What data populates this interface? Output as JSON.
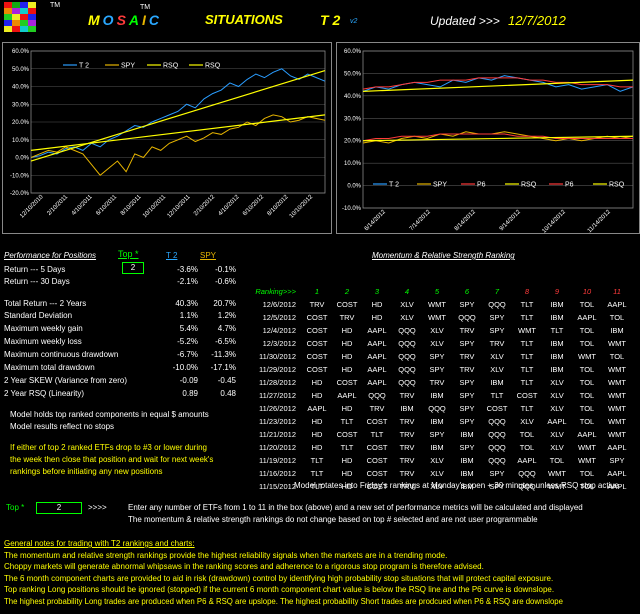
{
  "header": {
    "tm1": "TM",
    "tm2": "TM",
    "mosaic": "MOSAIC",
    "situations": "SITUATIONS",
    "t2": "T 2",
    "version": "v2",
    "updated_label": "Updated >>>",
    "updated_date": "12/7/2012"
  },
  "colors": {
    "t2": "#2a9dff",
    "spy": "#e6b400",
    "rsq": "#ffff00",
    "p6": "#ff3b3b",
    "green": "#00ff00"
  },
  "chart_data": [
    {
      "type": "line",
      "title": "",
      "yticks": [
        "60.0%",
        "50.0%",
        "40.0%",
        "30.0%",
        "20.0%",
        "10.0%",
        "0.0%",
        "-10.0%",
        "-20.0%"
      ],
      "ylim": [
        -20,
        60
      ],
      "xticks": [
        "12/10/2010",
        "2/10/2011",
        "4/10/2011",
        "6/10/2011",
        "8/10/2011",
        "10/10/2011",
        "12/10/2011",
        "2/10/2012",
        "4/10/2012",
        "6/10/2012",
        "8/10/2012",
        "10/10/2012"
      ],
      "legend": [
        "T 2",
        "SPY",
        "RSQ",
        "RSQ"
      ],
      "series": [
        {
          "name": "T 2",
          "values": [
            0,
            1,
            3,
            2,
            5,
            6,
            4,
            8,
            6,
            10,
            12,
            15,
            18,
            17,
            20,
            22,
            24,
            26,
            30,
            28,
            33,
            36,
            38,
            42,
            40,
            44,
            47,
            45,
            48,
            50,
            46,
            44,
            47,
            45,
            43
          ]
        },
        {
          "name": "SPY",
          "values": [
            0,
            2,
            4,
            3,
            6,
            4,
            2,
            -4,
            -10,
            -6,
            -2,
            -8,
            2,
            0,
            6,
            4,
            8,
            10,
            12,
            9,
            11,
            14,
            13,
            16,
            17,
            20,
            18,
            22,
            24,
            23,
            20,
            21,
            23,
            22,
            21
          ]
        },
        {
          "name": "RSQ",
          "values": [
            -2,
            49
          ]
        },
        {
          "name": "RSQ",
          "values": [
            4,
            24
          ]
        }
      ]
    },
    {
      "type": "line",
      "title": "",
      "yticks": [
        "60.0%",
        "50.0%",
        "40.0%",
        "30.0%",
        "20.0%",
        "10.0%",
        "0.0%",
        "-10.0%"
      ],
      "ylim": [
        -10,
        60
      ],
      "xticks": [
        "6/14/2012",
        "7/14/2012",
        "8/14/2012",
        "9/14/2012",
        "10/14/2012",
        "11/14/2012"
      ],
      "legend": [
        "T 2",
        "SPY",
        "P6",
        "RSQ",
        "P6",
        "RSQ"
      ],
      "series": [
        {
          "name": "T 2",
          "values": [
            42,
            44,
            43,
            45,
            46,
            45,
            44,
            47,
            46,
            48,
            47,
            49,
            48,
            47,
            46,
            44,
            45,
            43,
            44,
            45,
            42,
            44
          ]
        },
        {
          "name": "SPY",
          "values": [
            19,
            20,
            19,
            21,
            22,
            21,
            23,
            22,
            24,
            23,
            23,
            24,
            23,
            22,
            21,
            20,
            21,
            20,
            21,
            22,
            21,
            22
          ]
        },
        {
          "name": "P6",
          "values": [
            43,
            44,
            44,
            45,
            46,
            46,
            47,
            47,
            47,
            48,
            48,
            48,
            48,
            47,
            47,
            46,
            46,
            45,
            45,
            45,
            44,
            44
          ]
        },
        {
          "name": "RSQ",
          "values": [
            42,
            47
          ]
        },
        {
          "name": "P6",
          "values": [
            20,
            21,
            21,
            22,
            22,
            22,
            23,
            23,
            23,
            23,
            23,
            23,
            22,
            22,
            22,
            21,
            21,
            21,
            21,
            21,
            21,
            21
          ]
        },
        {
          "name": "RSQ",
          "values": [
            20,
            22
          ]
        }
      ]
    }
  ],
  "performance": {
    "heading": "Performance for Positions",
    "top_label": "Top *",
    "col1": "T 2",
    "col2": "SPY",
    "top_value": "2",
    "rows": [
      {
        "label": "Return --- 5 Days",
        "v1": "-3.6%",
        "v2": "-0.1%"
      },
      {
        "label": "Return --- 30 Days",
        "v1": "-2.1%",
        "v2": "-0.6%"
      },
      {
        "label": "Total Return --- 2 Years",
        "v1": "40.3%",
        "v2": "20.7%"
      },
      {
        "label": "Standard Deviation",
        "v1": "1.1%",
        "v2": "1.2%"
      },
      {
        "label": "Maximum weekly gain",
        "v1": "5.4%",
        "v2": "4.7%"
      },
      {
        "label": "Maximum weekly loss",
        "v1": "-5.2%",
        "v2": "-6.5%"
      },
      {
        "label": "Maximum continuous drawdown",
        "v1": "-6.7%",
        "v2": "-11.3%"
      },
      {
        "label": "Maximum total drawdown",
        "v1": "-10.0%",
        "v2": "-17.1%"
      },
      {
        "label": "2 Year SKEW  (Variance from zero)",
        "v1": "-0.09",
        "v2": "-0.45"
      },
      {
        "label": "2 Year RSQ  (Linearity)",
        "v1": "0.89",
        "v2": "0.48"
      }
    ],
    "model_note1": "Model holds top ranked  components in equal  $ amounts",
    "model_note2": "Model results reflect no stops",
    "stop_note1": "If either of top 2 ranked ETFs drop to #3 or lower during",
    "stop_note2": "the week then close that position and wait for next week's",
    "stop_note3": "rankings before initiating any new positions"
  },
  "ranking": {
    "heading": "Momentum & Relative Strength Ranking",
    "label": "Ranking>>>",
    "cols": [
      "1",
      "2",
      "3",
      "4",
      "5",
      "6",
      "7",
      "8",
      "9",
      "10",
      "11"
    ],
    "rows": [
      {
        "date": "12/6/2012",
        "r": [
          "TRV",
          "COST",
          "HD",
          "XLV",
          "WMT",
          "SPY",
          "QQQ",
          "TLT",
          "IBM",
          "TOL",
          "AAPL"
        ]
      },
      {
        "date": "12/5/2012",
        "r": [
          "COST",
          "TRV",
          "HD",
          "XLV",
          "WMT",
          "QQQ",
          "SPY",
          "TLT",
          "IBM",
          "AAPL",
          "TOL"
        ]
      },
      {
        "date": "12/4/2012",
        "r": [
          "COST",
          "HD",
          "AAPL",
          "QQQ",
          "XLV",
          "TRV",
          "SPY",
          "WMT",
          "TLT",
          "TOL",
          "IBM"
        ]
      },
      {
        "date": "12/3/2012",
        "r": [
          "COST",
          "HD",
          "AAPL",
          "QQQ",
          "XLV",
          "SPY",
          "TRV",
          "TLT",
          "IBM",
          "TOL",
          "WMT"
        ]
      },
      {
        "date": "11/30/2012",
        "r": [
          "COST",
          "HD",
          "AAPL",
          "QQQ",
          "SPY",
          "TRV",
          "XLV",
          "TLT",
          "IBM",
          "WMT",
          "TOL"
        ]
      },
      {
        "date": "11/29/2012",
        "r": [
          "COST",
          "HD",
          "AAPL",
          "QQQ",
          "SPY",
          "TRV",
          "XLV",
          "TLT",
          "IBM",
          "TOL",
          "WMT"
        ]
      },
      {
        "date": "11/28/2012",
        "r": [
          "HD",
          "COST",
          "AAPL",
          "QQQ",
          "TRV",
          "SPY",
          "IBM",
          "TLT",
          "XLV",
          "TOL",
          "WMT"
        ]
      },
      {
        "date": "11/27/2012",
        "r": [
          "HD",
          "AAPL",
          "QQQ",
          "TRV",
          "IBM",
          "SPY",
          "TLT",
          "COST",
          "XLV",
          "TOL",
          "WMT"
        ]
      },
      {
        "date": "11/26/2012",
        "r": [
          "AAPL",
          "HD",
          "TRV",
          "IBM",
          "QQQ",
          "SPY",
          "COST",
          "TLT",
          "XLV",
          "TOL",
          "WMT"
        ]
      },
      {
        "date": "11/23/2012",
        "r": [
          "HD",
          "TLT",
          "COST",
          "TRV",
          "IBM",
          "SPY",
          "QQQ",
          "XLV",
          "AAPL",
          "TOL",
          "WMT"
        ]
      },
      {
        "date": "11/21/2012",
        "r": [
          "HD",
          "COST",
          "TLT",
          "TRV",
          "SPY",
          "IBM",
          "QQQ",
          "TOL",
          "XLV",
          "AAPL",
          "WMT"
        ]
      },
      {
        "date": "11/20/2012",
        "r": [
          "HD",
          "TLT",
          "COST",
          "TRV",
          "IBM",
          "SPY",
          "QQQ",
          "TOL",
          "XLV",
          "WMT",
          "AAPL"
        ]
      },
      {
        "date": "11/19/2012",
        "r": [
          "TLT",
          "HD",
          "COST",
          "TRV",
          "XLV",
          "IBM",
          "QQQ",
          "AAPL",
          "TOL",
          "WMT",
          "SPY"
        ]
      },
      {
        "date": "11/16/2012",
        "r": [
          "TLT",
          "HD",
          "COST",
          "TRV",
          "XLV",
          "IBM",
          "SPY",
          "QQQ",
          "WMT",
          "TOL",
          "AAPL"
        ]
      },
      {
        "date": "11/15/2012",
        "r": [
          "TLT",
          "HD",
          "COST",
          "TRV",
          "XLV",
          "IBM",
          "SPY",
          "QQQ",
          "WMT",
          "TOL",
          "AAPL"
        ]
      }
    ],
    "rotate_note": "Model rotates into Friday's rankings at Monday's open + 30 minutes unless RSQ stop active."
  },
  "top_input": {
    "label": "Top *",
    "value": "2",
    "arrows": ">>>>",
    "line1": "Enter any number of ETFs from 1 to 11 in the box (above) and a new set of performance metrics will be calculated and displayed",
    "line2": "The momentum & relative strength rankings do not change based on top # selected and are not user programmable"
  },
  "notes": {
    "heading": "General notes for trading with T2 rankings and charts:",
    "lines": [
      "The momentum and relative strength rankings provide the highest reliability signals when the markets are in a trending mode.",
      "Choppy markets will generate abnormal whipsaws in the ranking scores and adherence to a rigorous stop program is therefore advised.",
      "The 6 month component charts are provided to aid in risk (drawdown) control by identifying high probability stop situations that will protect capital exposure.",
      "Top ranking Long positions should be ignored (stopped) if the current 6 month component chart value is below the RSQ line and the P6 curve is downslope.",
      "The highest probability Long trades are produced when P6 & RSQ are upslope.  The highest probability Short trades are prodcued when P6 & RSQ are downslope"
    ]
  }
}
